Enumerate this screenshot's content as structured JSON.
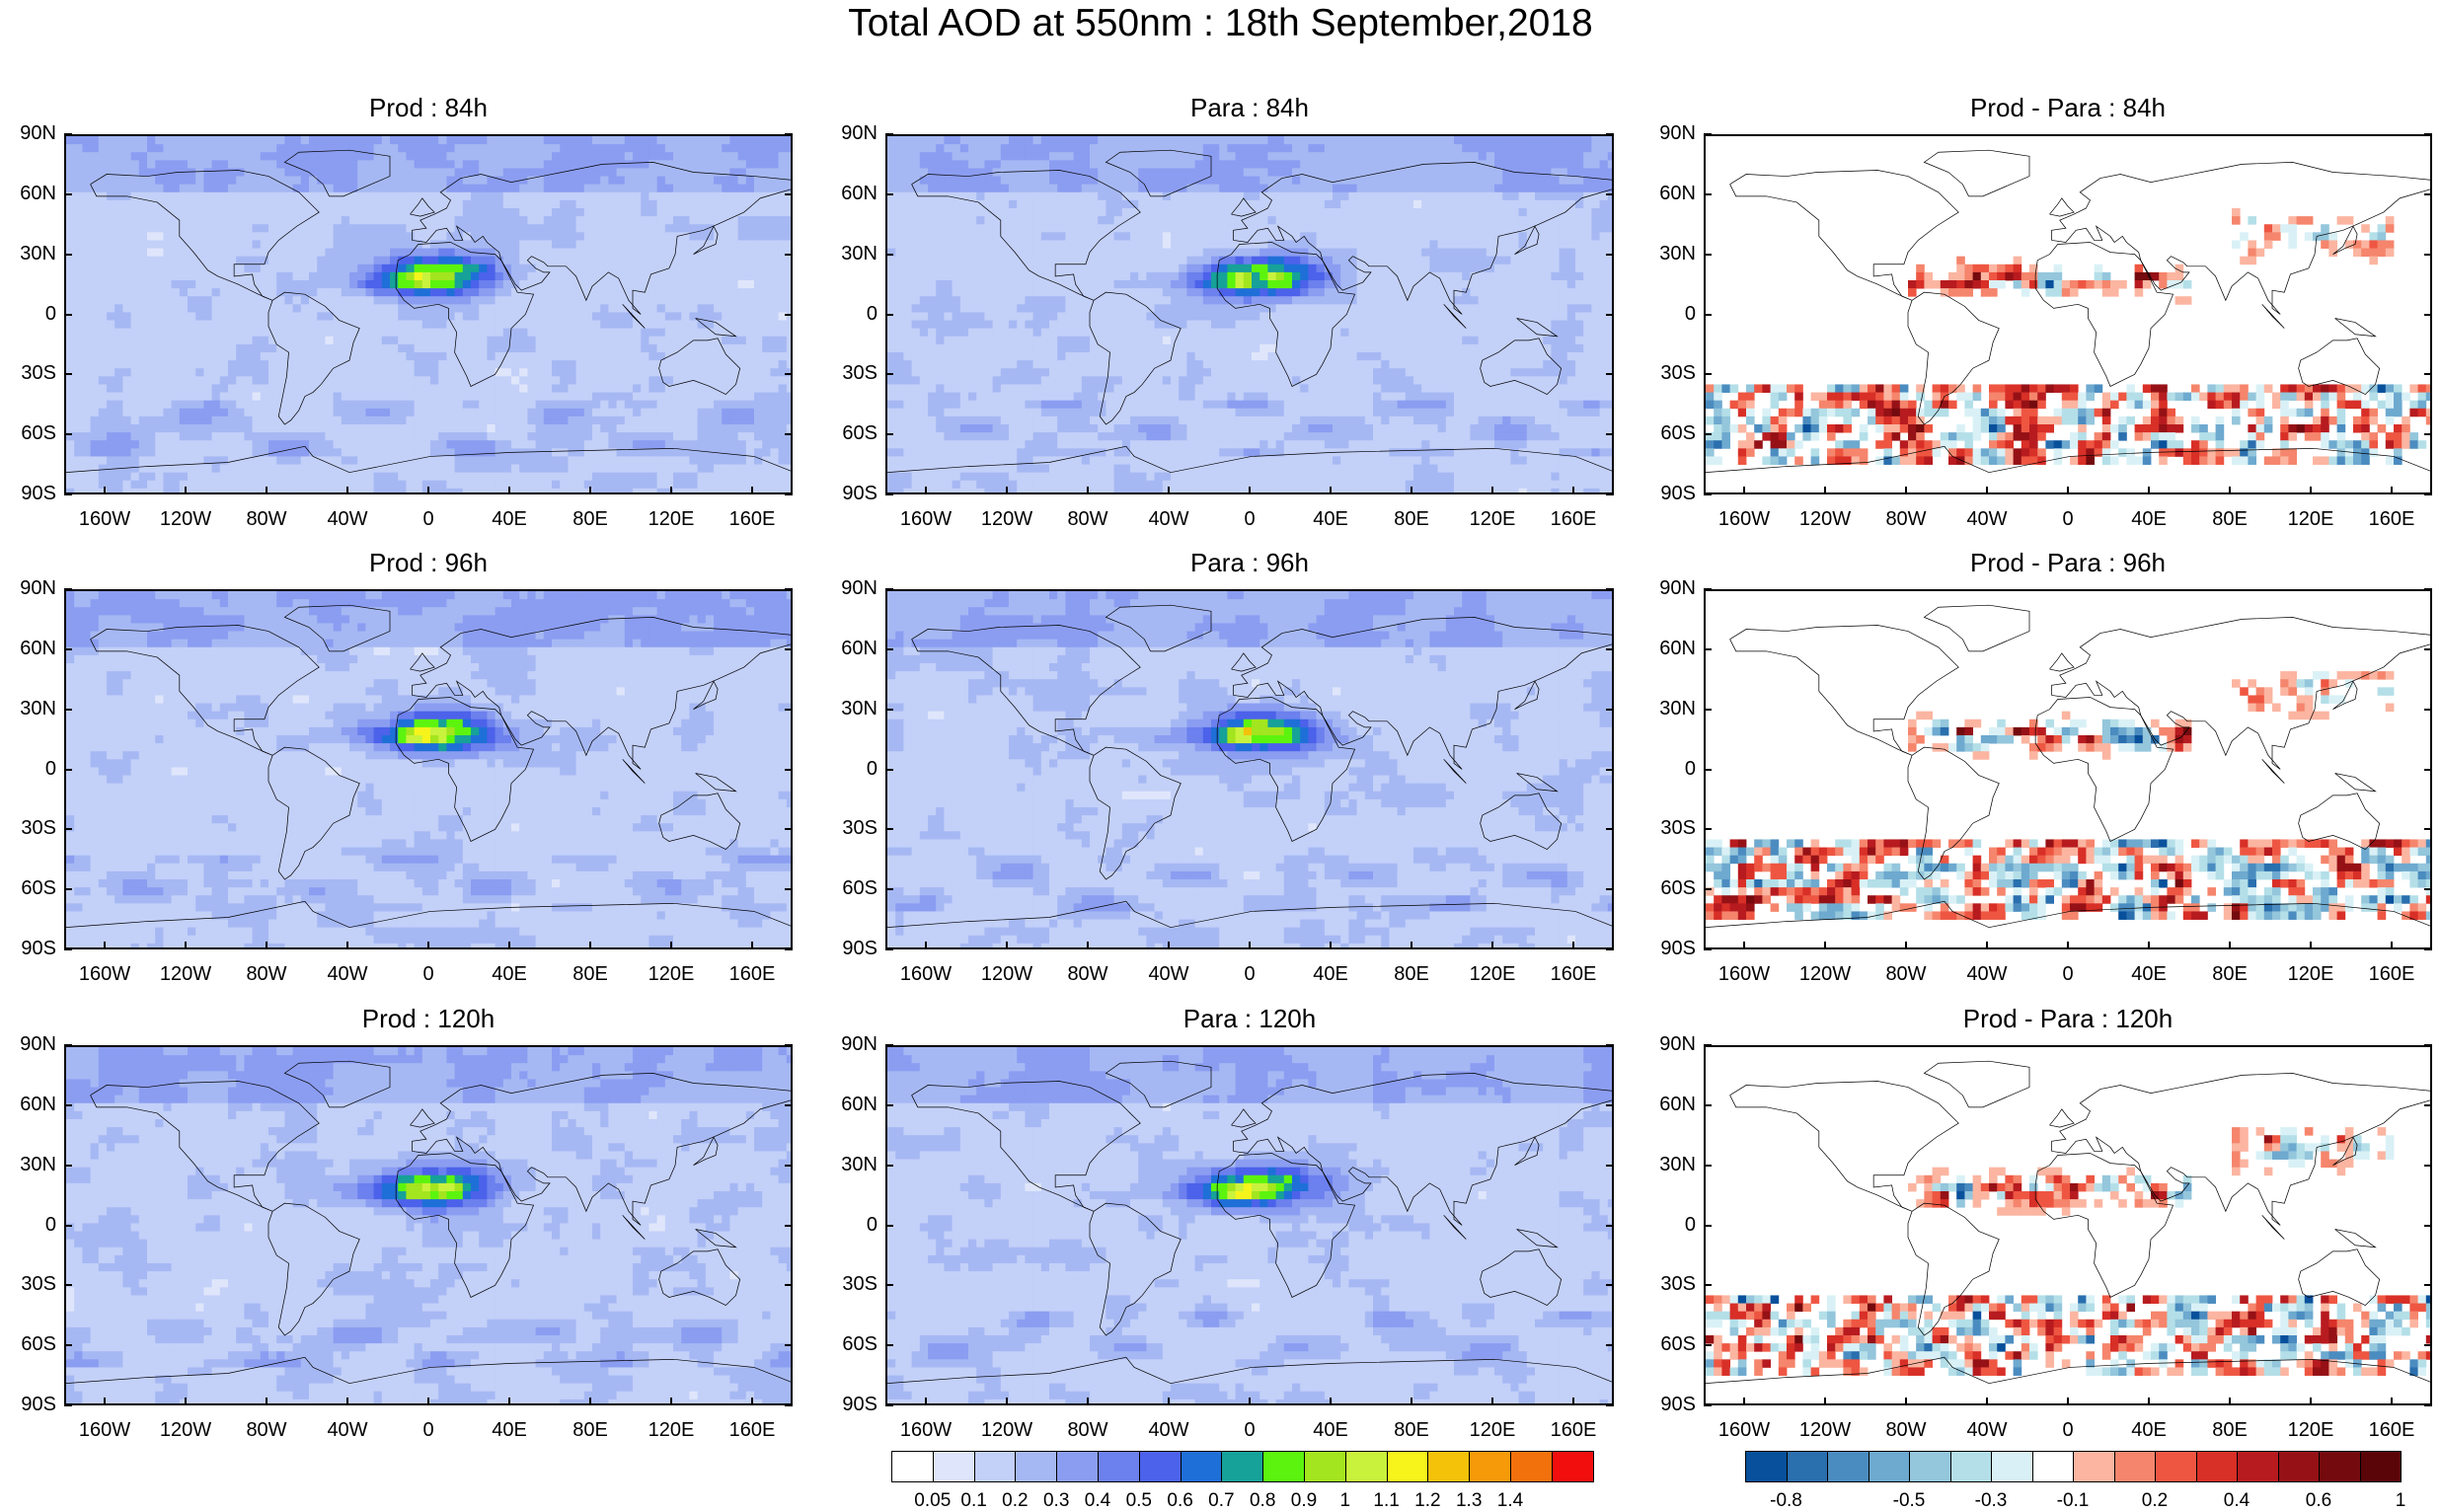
{
  "title": "Total AOD at 550nm : 18th September,2018",
  "lat_ticks": [
    "90N",
    "60N",
    "30N",
    "0",
    "30S",
    "60S",
    "90S"
  ],
  "lon_ticks": [
    "160W",
    "120W",
    "80W",
    "40W",
    "0",
    "40E",
    "80E",
    "120E",
    "160E"
  ],
  "panels": [
    {
      "title": "Prod : 84h",
      "kind": "aod"
    },
    {
      "title": "Para : 84h",
      "kind": "aod"
    },
    {
      "title": "Prod - Para : 84h",
      "kind": "diff"
    },
    {
      "title": "Prod : 96h",
      "kind": "aod"
    },
    {
      "title": "Para : 96h",
      "kind": "aod"
    },
    {
      "title": "Prod - Para : 96h",
      "kind": "diff"
    },
    {
      "title": "Prod : 120h",
      "kind": "aod"
    },
    {
      "title": "Para : 120h",
      "kind": "aod"
    },
    {
      "title": "Prod - Para : 120h",
      "kind": "diff"
    }
  ],
  "chart_data": [
    {
      "type": "heatmap",
      "name": "aod_colorbar",
      "levels": [
        "0.05",
        "0.1",
        "0.2",
        "0.3",
        "0.4",
        "0.5",
        "0.6",
        "0.7",
        "0.8",
        "0.9",
        "1",
        "1.1",
        "1.2",
        "1.3",
        "1.4"
      ],
      "colors": [
        "#ffffff",
        "#dfe6fb",
        "#c3d0f8",
        "#a6b8f3",
        "#8b9df1",
        "#6c80ee",
        "#4c62ea",
        "#1f6fd8",
        "#16a199",
        "#5cf40e",
        "#a3e51e",
        "#c9f23d",
        "#f6f41b",
        "#f4c209",
        "#f79a09",
        "#f3710c",
        "#f30e0e"
      ]
    },
    {
      "type": "heatmap",
      "name": "diff_colorbar",
      "levels": [
        "-0.8",
        "-0.5",
        "-0.3",
        "-0.1",
        "0.2",
        "0.4",
        "0.6",
        "1"
      ],
      "colors": [
        "#08509b",
        "#2a6fae",
        "#4b8cc0",
        "#6ea9cf",
        "#94c6dc",
        "#b4dfe8",
        "#d9f1f6",
        "#ffffff",
        "#fbb5a1",
        "#f5856c",
        "#ee5642",
        "#d82f27",
        "#b71b1f",
        "#951116",
        "#740a0e",
        "#5a0508"
      ]
    }
  ]
}
